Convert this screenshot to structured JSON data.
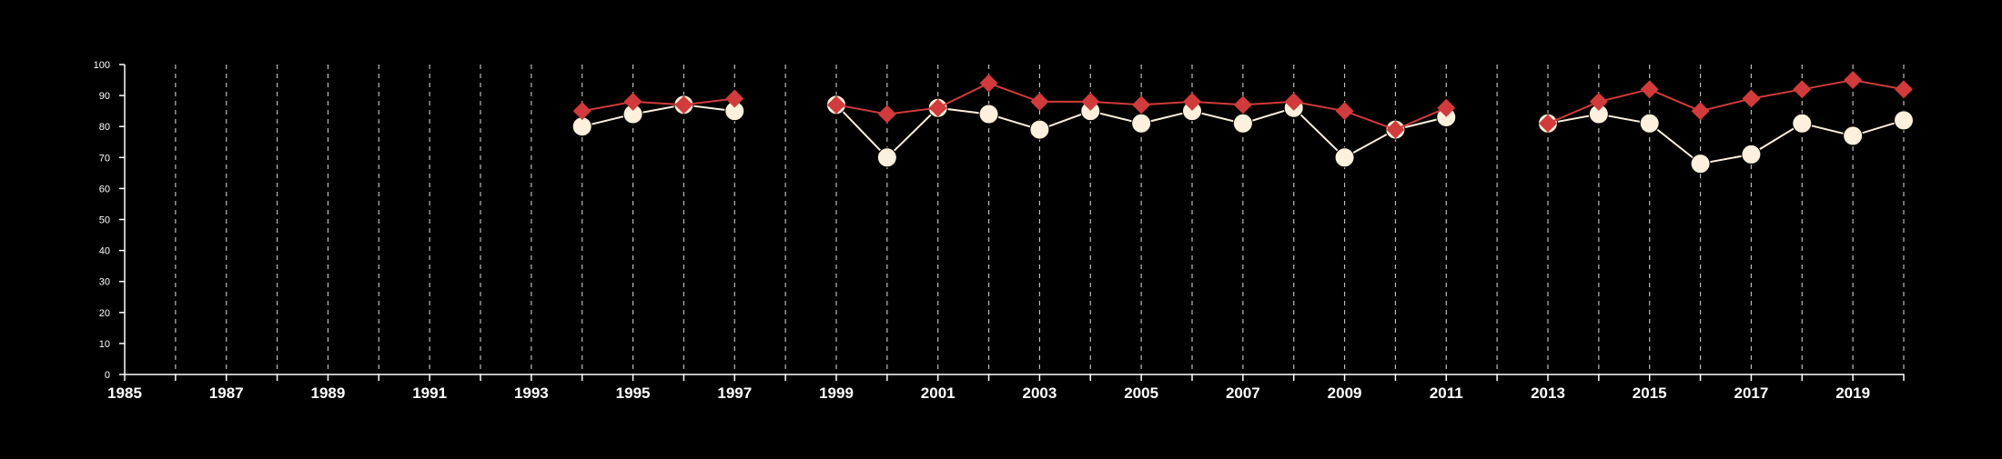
{
  "chart_data": {
    "type": "line",
    "xlim": [
      1985,
      2020
    ],
    "ylim": [
      0,
      100
    ],
    "y_ticks": [
      0,
      10,
      20,
      30,
      40,
      50,
      60,
      70,
      80,
      90,
      100
    ],
    "x_ticks": [
      1985,
      1987,
      1989,
      1991,
      1993,
      1995,
      1997,
      1999,
      2001,
      2003,
      2005,
      2007,
      2009,
      2011,
      2013,
      2015,
      2017,
      2019
    ],
    "vertical_grid": "dashed lines at every year",
    "series": [
      {
        "marker": "diamond",
        "color": "#d13b3b",
        "points": [
          [
            1994,
            85
          ],
          [
            1995,
            88
          ],
          [
            1996,
            87
          ],
          [
            1997,
            89
          ],
          [
            1999,
            87
          ],
          [
            2000,
            84
          ],
          [
            2001,
            86
          ],
          [
            2002,
            94
          ],
          [
            2003,
            88
          ],
          [
            2004,
            88
          ],
          [
            2005,
            87
          ],
          [
            2006,
            88
          ],
          [
            2007,
            87
          ],
          [
            2008,
            88
          ],
          [
            2009,
            85
          ],
          [
            2010,
            79
          ],
          [
            2011,
            86
          ],
          [
            2013,
            81
          ],
          [
            2014,
            88
          ],
          [
            2015,
            92
          ],
          [
            2016,
            85
          ],
          [
            2017,
            89
          ],
          [
            2018,
            92
          ],
          [
            2019,
            95
          ],
          [
            2020,
            92
          ]
        ]
      },
      {
        "marker": "circle",
        "color": "#fdf0dc",
        "points": [
          [
            1994,
            80
          ],
          [
            1995,
            84
          ],
          [
            1996,
            87
          ],
          [
            1997,
            85
          ],
          [
            1999,
            87
          ],
          [
            2000,
            70
          ],
          [
            2001,
            86
          ],
          [
            2002,
            84
          ],
          [
            2003,
            79
          ],
          [
            2004,
            85
          ],
          [
            2005,
            81
          ],
          [
            2006,
            85
          ],
          [
            2007,
            81
          ],
          [
            2008,
            86
          ],
          [
            2009,
            70
          ],
          [
            2010,
            79
          ],
          [
            2011,
            83
          ],
          [
            2013,
            81
          ],
          [
            2014,
            84
          ],
          [
            2015,
            81
          ],
          [
            2016,
            68
          ],
          [
            2017,
            71
          ],
          [
            2018,
            81
          ],
          [
            2019,
            77
          ],
          [
            2020,
            82
          ]
        ]
      }
    ],
    "segment_breaks_after_years": [
      1997,
      2011
    ]
  }
}
